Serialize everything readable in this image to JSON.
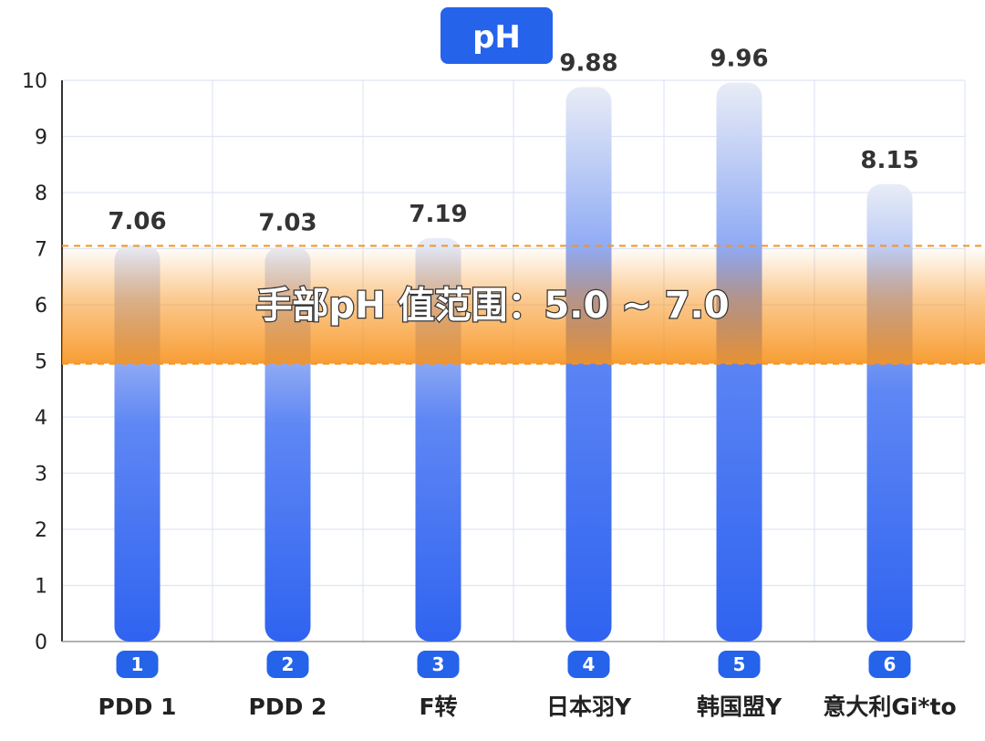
{
  "chart_data": {
    "type": "bar",
    "title": "pH",
    "categories": [
      "PDD 1",
      "PDD 2",
      "F转",
      "日本羽Y",
      "韩国盟Y",
      "意大利Gi*to"
    ],
    "category_index": [
      "1",
      "2",
      "3",
      "4",
      "5",
      "6"
    ],
    "values": [
      7.06,
      7.03,
      7.19,
      9.88,
      9.96,
      8.15
    ],
    "value_labels": [
      "7.06",
      "7.03",
      "7.19",
      "9.88",
      "9.96",
      "8.15"
    ],
    "ylim": [
      0,
      10
    ],
    "yticks": [
      0,
      1,
      2,
      3,
      4,
      5,
      6,
      7,
      8,
      9,
      10
    ],
    "xlabel": "",
    "ylabel": "",
    "grid": true,
    "reference_band": {
      "low": 5.0,
      "high": 7.0,
      "label": "手部pH 值范围：5.0 ~ 7.0"
    },
    "colors": {
      "bar_bottom": "#2f63f0",
      "bar_top": "#e8ecf6",
      "band": "#f7931e",
      "title_bg": "#2563eb",
      "index_badge": "#2563eb",
      "grid": "#dfe5f3"
    }
  }
}
